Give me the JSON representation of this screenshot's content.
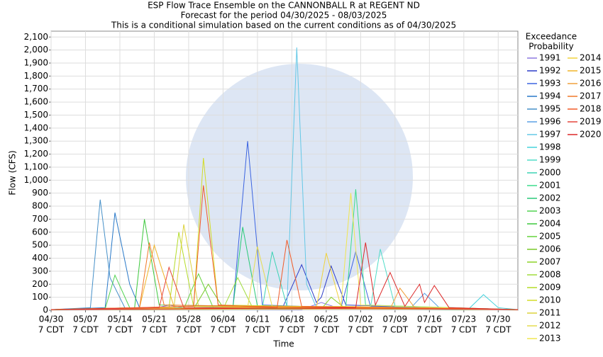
{
  "chart_data": {
    "type": "line",
    "title_lines": [
      "ESP Flow Trace Ensemble on the CANNONBALL R at REGENT ND",
      "Forecast for the period 04/30/2025 - 08/03/2025",
      "This is a conditional simulation based on the current conditions as of 04/30/2025"
    ],
    "xlabel": "Time",
    "ylabel": "Flow (CFS)",
    "legend_title_lines": [
      "Exceedance",
      "Probability"
    ],
    "xlim": [
      "04/30",
      "08/03"
    ],
    "xticks": [
      "04/30",
      "05/07",
      "05/14",
      "05/21",
      "05/28",
      "06/04",
      "06/11",
      "06/18",
      "06/25",
      "07/02",
      "07/09",
      "07/16",
      "07/23",
      "07/30"
    ],
    "x_tick_sublabel": "7 CDT",
    "ylim": [
      0,
      2145
    ],
    "yticks": [
      0,
      100,
      200,
      300,
      400,
      500,
      600,
      700,
      800,
      900,
      {
        "value": 1000,
        "label": "1,000"
      },
      {
        "value": 1100,
        "label": "1,100"
      },
      {
        "value": 1200,
        "label": "1,200"
      },
      {
        "value": 1300,
        "label": "1,300"
      },
      {
        "value": 1400,
        "label": "1,400"
      },
      {
        "value": 1500,
        "label": "1,500"
      },
      {
        "value": 1600,
        "label": "1,600"
      },
      {
        "value": 1700,
        "label": "1,700"
      },
      {
        "value": 1800,
        "label": "1,800"
      },
      {
        "value": 1900,
        "label": "1,900"
      },
      {
        "value": 2000,
        "label": "2,000"
      },
      {
        "value": 2100,
        "label": "2,100"
      }
    ],
    "grid": true,
    "series": [
      {
        "name": "1991",
        "color": "#8c78e0",
        "x": [
          "04/30",
          "05/20",
          "05/24",
          "05/28",
          "06/20",
          "06/24",
          "06/28",
          "08/03"
        ],
        "values": [
          5,
          5,
          40,
          10,
          5,
          60,
          10,
          5
        ]
      },
      {
        "name": "1992",
        "color": "#2c3cc8",
        "x": [
          "04/30",
          "06/16",
          "06/20",
          "06/23",
          "06/24",
          "06/26",
          "06/29",
          "08/03"
        ],
        "values": [
          5,
          10,
          350,
          60,
          100,
          340,
          40,
          5
        ]
      },
      {
        "name": "1993",
        "color": "#3c64e0",
        "x": [
          "04/30",
          "06/06",
          "06/09",
          "06/12",
          "06/28",
          "07/01",
          "07/04",
          "08/03"
        ],
        "values": [
          5,
          20,
          1300,
          40,
          20,
          450,
          30,
          5
        ]
      },
      {
        "name": "1994",
        "color": "#2878c8",
        "x": [
          "04/30",
          "05/11",
          "05/13",
          "05/16",
          "05/18",
          "08/03"
        ],
        "values": [
          5,
          20,
          750,
          200,
          20,
          5
        ]
      },
      {
        "name": "1995",
        "color": "#4690c8",
        "x": [
          "04/30",
          "05/08",
          "05/10",
          "05/12",
          "05/15",
          "08/03"
        ],
        "values": [
          5,
          20,
          850,
          250,
          20,
          5
        ]
      },
      {
        "name": "1996",
        "color": "#5aa0e6",
        "x": [
          "04/30",
          "07/12",
          "07/15",
          "07/18",
          "08/03"
        ],
        "values": [
          5,
          10,
          130,
          20,
          5
        ]
      },
      {
        "name": "1997",
        "color": "#64c8e6",
        "x": [
          "04/30",
          "06/17",
          "06/19",
          "06/21",
          "06/23",
          "08/03"
        ],
        "values": [
          5,
          30,
          2020,
          200,
          20,
          5
        ]
      },
      {
        "name": "1998",
        "color": "#46d2dc",
        "x": [
          "04/30",
          "07/24",
          "07/27",
          "07/30",
          "08/03"
        ],
        "values": [
          5,
          10,
          120,
          20,
          5
        ]
      },
      {
        "name": "1999",
        "color": "#50dcc8",
        "x": [
          "04/30",
          "07/04",
          "07/06",
          "07/09",
          "08/03"
        ],
        "values": [
          5,
          20,
          470,
          30,
          5
        ]
      },
      {
        "name": "2000",
        "color": "#3cd2b4",
        "x": [
          "04/30",
          "06/12",
          "06/14",
          "06/17",
          "08/03"
        ],
        "values": [
          5,
          20,
          450,
          30,
          5
        ]
      },
      {
        "name": "2001",
        "color": "#3cdc8c",
        "x": [
          "04/30",
          "06/29",
          "07/01",
          "07/03",
          "08/03"
        ],
        "values": [
          5,
          30,
          930,
          40,
          5
        ]
      },
      {
        "name": "2002",
        "color": "#28c878",
        "x": [
          "04/30",
          "06/06",
          "06/08",
          "06/11",
          "08/03"
        ],
        "values": [
          5,
          20,
          640,
          30,
          5
        ]
      },
      {
        "name": "2003",
        "color": "#50d250",
        "x": [
          "04/30",
          "05/11",
          "05/13",
          "05/16",
          "08/03"
        ],
        "values": [
          5,
          10,
          270,
          20,
          5
        ]
      },
      {
        "name": "2004",
        "color": "#3cc83c",
        "x": [
          "04/30",
          "05/17",
          "05/19",
          "05/22",
          "08/03"
        ],
        "values": [
          5,
          20,
          700,
          40,
          5
        ]
      },
      {
        "name": "2005",
        "color": "#64d23c",
        "x": [
          "04/30",
          "05/27",
          "05/30",
          "06/02",
          "08/03"
        ],
        "values": [
          5,
          10,
          280,
          20,
          5
        ]
      },
      {
        "name": "2006",
        "color": "#78c828",
        "x": [
          "04/30",
          "05/29",
          "06/01",
          "06/04",
          "08/03"
        ],
        "values": [
          5,
          10,
          200,
          20,
          5
        ]
      },
      {
        "name": "2007",
        "color": "#8cd228",
        "x": [
          "04/30",
          "06/24",
          "06/26",
          "06/29",
          "08/03"
        ],
        "values": [
          5,
          10,
          100,
          10,
          5
        ]
      },
      {
        "name": "2008",
        "color": "#a0dc3c",
        "x": [
          "04/30",
          "06/04",
          "06/07",
          "06/10",
          "08/03"
        ],
        "values": [
          5,
          10,
          250,
          20,
          5
        ]
      },
      {
        "name": "2009",
        "color": "#b4dc28",
        "x": [
          "04/30",
          "05/24",
          "05/26",
          "05/29",
          "08/03"
        ],
        "values": [
          5,
          20,
          600,
          30,
          5
        ]
      },
      {
        "name": "2010",
        "color": "#d2dc28",
        "x": [
          "04/30",
          "05/29",
          "05/31",
          "06/03",
          "08/03"
        ],
        "values": [
          5,
          30,
          1170,
          40,
          5
        ]
      },
      {
        "name": "2011",
        "color": "#dcd23c",
        "x": [
          "04/30",
          "05/25",
          "05/27",
          "05/30",
          "08/03"
        ],
        "values": [
          5,
          20,
          660,
          30,
          5
        ]
      },
      {
        "name": "2012",
        "color": "#e6dc50",
        "x": [
          "04/30",
          "06/09",
          "06/11",
          "06/14",
          "08/03"
        ],
        "values": [
          5,
          20,
          490,
          30,
          5
        ]
      },
      {
        "name": "2013",
        "color": "#f0e650",
        "x": [
          "04/30",
          "06/28",
          "06/30",
          "07/02",
          "08/03"
        ],
        "values": [
          5,
          30,
          900,
          40,
          5
        ]
      },
      {
        "name": "2014",
        "color": "#f0d23c",
        "x": [
          "04/30",
          "06/23",
          "06/25",
          "06/28",
          "08/03"
        ],
        "values": [
          5,
          20,
          440,
          30,
          5
        ]
      },
      {
        "name": "2015",
        "color": "#f0b428",
        "x": [
          "04/30",
          "05/18",
          "05/21",
          "05/25",
          "08/03"
        ],
        "values": [
          5,
          20,
          500,
          30,
          5
        ]
      },
      {
        "name": "2016",
        "color": "#f0a03c",
        "x": [
          "04/30",
          "07/08",
          "07/10",
          "07/13",
          "08/03"
        ],
        "values": [
          5,
          10,
          170,
          20,
          5
        ]
      },
      {
        "name": "2017",
        "color": "#f07828",
        "x": [
          "04/30",
          "05/18",
          "05/20",
          "05/23",
          "08/03"
        ],
        "values": [
          5,
          20,
          520,
          40,
          5
        ]
      },
      {
        "name": "2018",
        "color": "#f05a28",
        "x": [
          "04/30",
          "05/29",
          "05/31",
          "06/03",
          "06/15",
          "06/17",
          "06/20",
          "08/03"
        ],
        "values": [
          5,
          30,
          960,
          40,
          20,
          540,
          30,
          5
        ]
      },
      {
        "name": "2019",
        "color": "#e6463c",
        "x": [
          "04/30",
          "05/22",
          "05/24",
          "05/27",
          "08/03"
        ],
        "values": [
          5,
          20,
          330,
          20,
          5
        ]
      },
      {
        "name": "2020",
        "color": "#dc2828",
        "x": [
          "04/30",
          "07/01",
          "07/03",
          "07/05",
          "07/08",
          "07/11",
          "07/14",
          "07/15",
          "07/17",
          "07/20",
          "08/03"
        ],
        "values": [
          5,
          20,
          520,
          40,
          290,
          30,
          200,
          60,
          190,
          20,
          5
        ]
      }
    ]
  }
}
